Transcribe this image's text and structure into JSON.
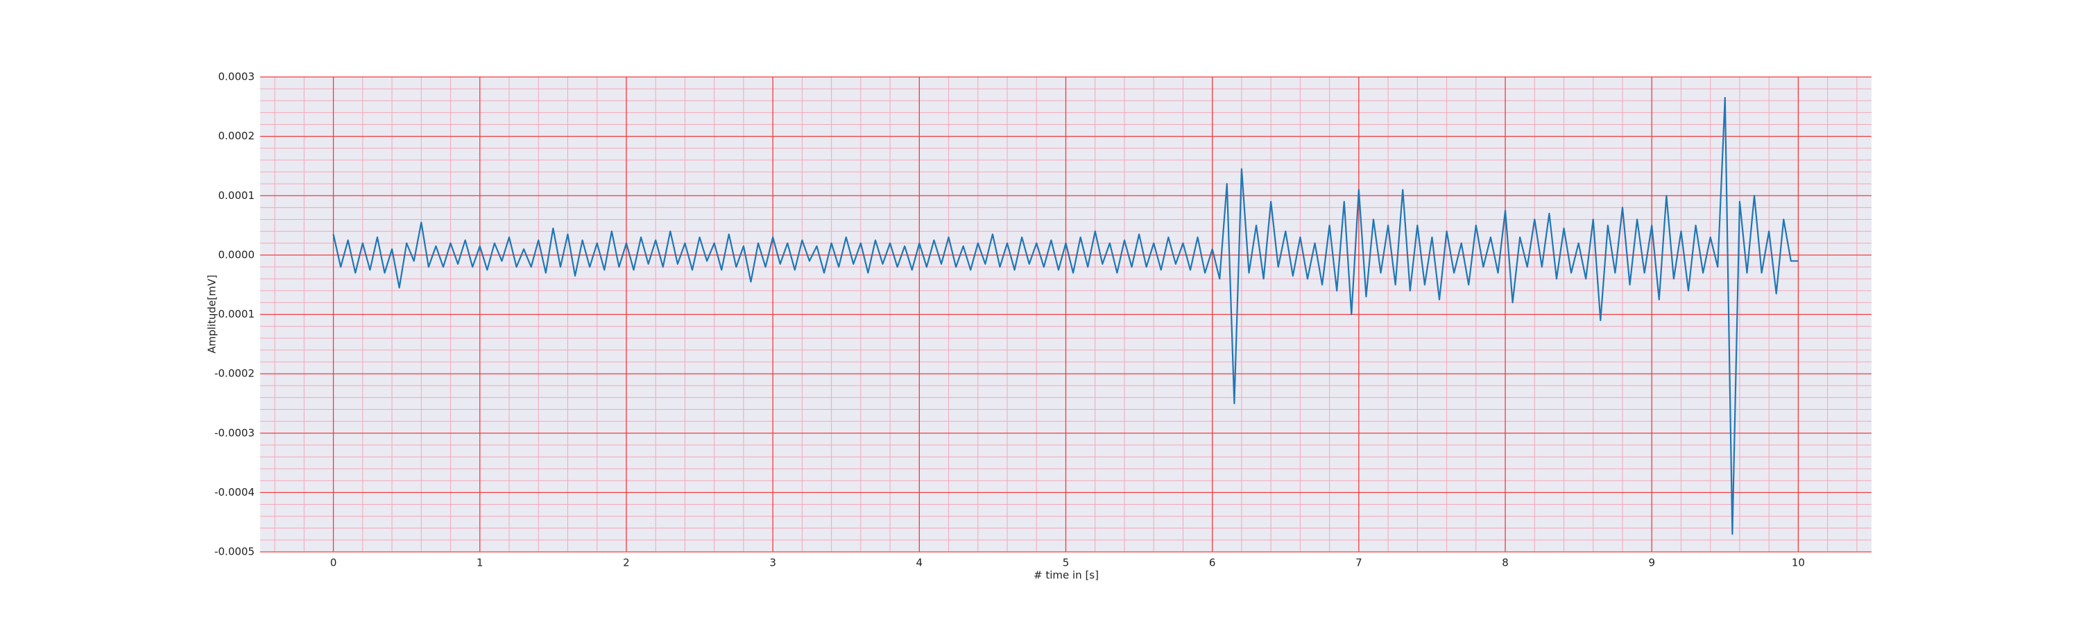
{
  "chart_data": {
    "type": "line",
    "xlabel": "# time in [s]",
    "ylabel": "Amplitude[mV]",
    "xlim": [
      -0.5,
      10.5
    ],
    "xticks": [
      0,
      1,
      2,
      3,
      4,
      5,
      6,
      7,
      8,
      9,
      10
    ],
    "ylim": [
      -0.0005,
      0.0003
    ],
    "yticks": [
      -0.0005,
      -0.0004,
      -0.0003,
      -0.0002,
      -0.0001,
      {
        "value": 0,
        "label": "0.0000"
      },
      0.0001,
      0.0002,
      0.0003
    ],
    "grid": true,
    "grid_color": "#f03c3c",
    "minor_grid": true,
    "minor_grid_color": "#f4a6b8",
    "minor_divisions": 5,
    "background": "#eaeaf2",
    "series": [
      {
        "color": "#1f77b4",
        "x": [
          0,
          0.05,
          0.1,
          0.15,
          0.2,
          0.25,
          0.3,
          0.35,
          0.4,
          0.45,
          0.5,
          0.55,
          0.6,
          0.65,
          0.7,
          0.75,
          0.8,
          0.85,
          0.9,
          0.95,
          1,
          1.05,
          1.1,
          1.15,
          1.2,
          1.25,
          1.3,
          1.35,
          1.4,
          1.45,
          1.5,
          1.55,
          1.6,
          1.65,
          1.7,
          1.75,
          1.8,
          1.85,
          1.9,
          1.95,
          2,
          2.05,
          2.1,
          2.15,
          2.2,
          2.25,
          2.3,
          2.35,
          2.4,
          2.45,
          2.5,
          2.55,
          2.6,
          2.65,
          2.7,
          2.75,
          2.8,
          2.85,
          2.9,
          2.95,
          3,
          3.05,
          3.1,
          3.15,
          3.2,
          3.25,
          3.3,
          3.35,
          3.4,
          3.45,
          3.5,
          3.55,
          3.6,
          3.65,
          3.7,
          3.75,
          3.8,
          3.85,
          3.9,
          3.95,
          4,
          4.05,
          4.1,
          4.15,
          4.2,
          4.25,
          4.3,
          4.35,
          4.4,
          4.45,
          4.5,
          4.55,
          4.6,
          4.65,
          4.7,
          4.75,
          4.8,
          4.85,
          4.9,
          4.95,
          5,
          5.05,
          5.1,
          5.15,
          5.2,
          5.25,
          5.3,
          5.35,
          5.4,
          5.45,
          5.5,
          5.55,
          5.6,
          5.65,
          5.7,
          5.75,
          5.8,
          5.85,
          5.9,
          5.95,
          6,
          6.05,
          6.1,
          6.15,
          6.2,
          6.25,
          6.3,
          6.35,
          6.4,
          6.45,
          6.5,
          6.55,
          6.6,
          6.65,
          6.7,
          6.75,
          6.8,
          6.85,
          6.9,
          6.95,
          7,
          7.05,
          7.1,
          7.15,
          7.2,
          7.25,
          7.3,
          7.35,
          7.4,
          7.45,
          7.5,
          7.55,
          7.6,
          7.65,
          7.7,
          7.75,
          7.8,
          7.85,
          7.9,
          7.95,
          8,
          8.05,
          8.1,
          8.15,
          8.2,
          8.25,
          8.3,
          8.35,
          8.4,
          8.45,
          8.5,
          8.55,
          8.6,
          8.65,
          8.7,
          8.75,
          8.8,
          8.85,
          8.9,
          8.95,
          9,
          9.05,
          9.1,
          9.15,
          9.2,
          9.25,
          9.3,
          9.35,
          9.4,
          9.45,
          9.5,
          9.55,
          9.6,
          9.65,
          9.7,
          9.75,
          9.8,
          9.85,
          9.9,
          9.95,
          10
        ],
        "values": [
          3.5e-05,
          -2e-05,
          2.5e-05,
          -3e-05,
          2e-05,
          -2.5e-05,
          3e-05,
          -3e-05,
          1e-05,
          -5.5e-05,
          2e-05,
          -1e-05,
          5.5e-05,
          -2e-05,
          1.5e-05,
          -2e-05,
          2e-05,
          -1.5e-05,
          2.5e-05,
          -2e-05,
          1.5e-05,
          -2.5e-05,
          2e-05,
          -1e-05,
          3e-05,
          -2e-05,
          1e-05,
          -2e-05,
          2.5e-05,
          -3e-05,
          4.5e-05,
          -2e-05,
          3.5e-05,
          -3.5e-05,
          2.5e-05,
          -2e-05,
          2e-05,
          -2.5e-05,
          4e-05,
          -2e-05,
          2e-05,
          -2.5e-05,
          3e-05,
          -1.5e-05,
          2.5e-05,
          -2e-05,
          4e-05,
          -1.5e-05,
          2e-05,
          -2.5e-05,
          3e-05,
          -1e-05,
          2e-05,
          -2.5e-05,
          3.5e-05,
          -2e-05,
          1.5e-05,
          -4.5e-05,
          2e-05,
          -2e-05,
          3e-05,
          -1.5e-05,
          2e-05,
          -2.5e-05,
          2.5e-05,
          -1e-05,
          1.5e-05,
          -3e-05,
          2e-05,
          -2e-05,
          3e-05,
          -1.5e-05,
          2e-05,
          -3e-05,
          2.5e-05,
          -1.5e-05,
          2e-05,
          -2e-05,
          1.5e-05,
          -2.5e-05,
          2e-05,
          -2e-05,
          2.5e-05,
          -1.5e-05,
          3e-05,
          -2e-05,
          1.5e-05,
          -2.5e-05,
          2e-05,
          -1.5e-05,
          3.5e-05,
          -2e-05,
          2e-05,
          -2.5e-05,
          3e-05,
          -1.5e-05,
          2e-05,
          -2e-05,
          2.5e-05,
          -2.5e-05,
          2e-05,
          -3e-05,
          3e-05,
          -2e-05,
          4e-05,
          -1.5e-05,
          2e-05,
          -3e-05,
          2.5e-05,
          -2e-05,
          3.5e-05,
          -2e-05,
          2e-05,
          -2.5e-05,
          3e-05,
          -1.5e-05,
          2e-05,
          -2.5e-05,
          3e-05,
          -3e-05,
          1e-05,
          -4e-05,
          0.00012,
          -0.00025,
          0.000145,
          -3e-05,
          5e-05,
          -4e-05,
          9e-05,
          -2e-05,
          4e-05,
          -3.5e-05,
          3e-05,
          -4e-05,
          2e-05,
          -5e-05,
          5e-05,
          -6e-05,
          9e-05,
          -0.0001,
          0.00011,
          -7e-05,
          6e-05,
          -3e-05,
          5e-05,
          -5e-05,
          0.00011,
          -6e-05,
          5e-05,
          -5e-05,
          3e-05,
          -7.5e-05,
          4e-05,
          -3e-05,
          2e-05,
          -5e-05,
          5e-05,
          -2e-05,
          3e-05,
          -3e-05,
          7.5e-05,
          -8e-05,
          3e-05,
          -2e-05,
          6e-05,
          -2e-05,
          7e-05,
          -4e-05,
          4.5e-05,
          -3e-05,
          2e-05,
          -4e-05,
          6e-05,
          -0.00011,
          5e-05,
          -3e-05,
          8e-05,
          -5e-05,
          6e-05,
          -3e-05,
          5e-05,
          -7.5e-05,
          0.0001,
          -4e-05,
          4e-05,
          -6e-05,
          5e-05,
          -3e-05,
          3e-05,
          -2e-05,
          0.000265,
          -0.00047,
          9e-05,
          -3e-05,
          0.0001,
          -3e-05,
          4e-05,
          -6.5e-05,
          6e-05,
          -1e-05,
          -1e-05
        ]
      }
    ]
  }
}
